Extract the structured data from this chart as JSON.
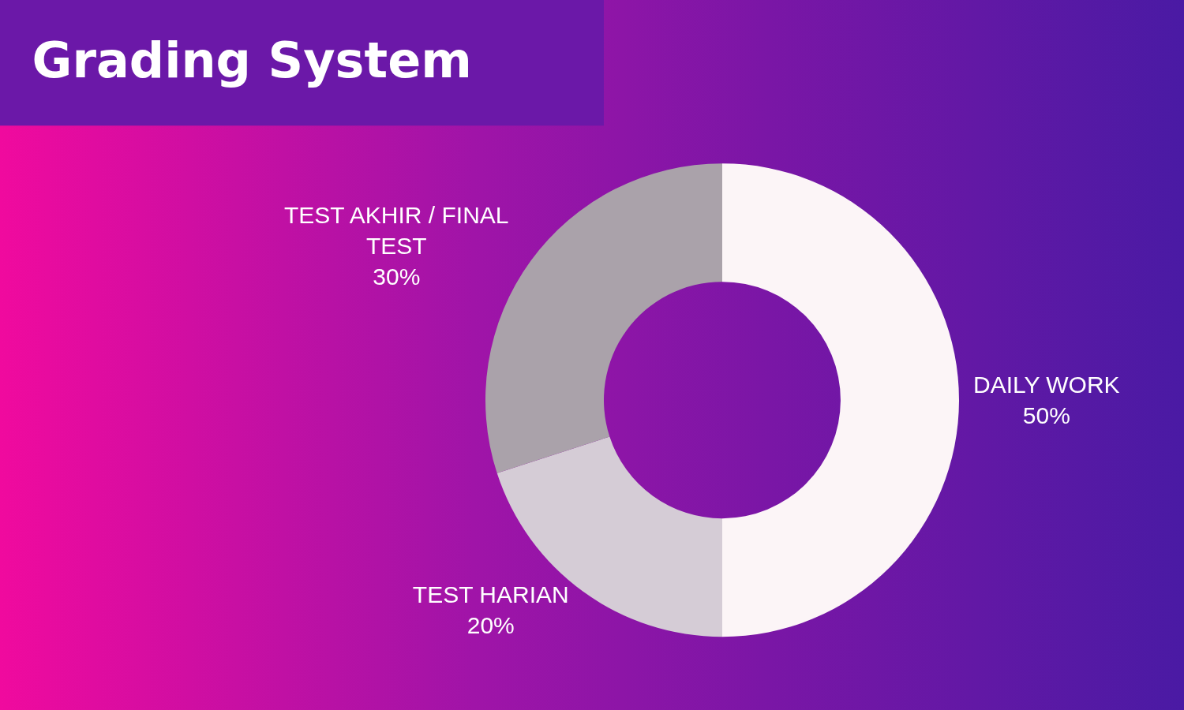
{
  "chart_data": {
    "type": "donut",
    "title": "Grading System",
    "categories": [
      "DAILY WORK",
      "TEST HARIAN",
      "TEST AKHIR / FINAL TEST"
    ],
    "values": [
      50,
      20,
      30
    ],
    "value_labels": [
      "50%",
      "20%",
      "30%"
    ],
    "colors": [
      "#fcf5f7",
      "#d5ccd6",
      "#aaa2aa"
    ],
    "legend": false
  }
}
